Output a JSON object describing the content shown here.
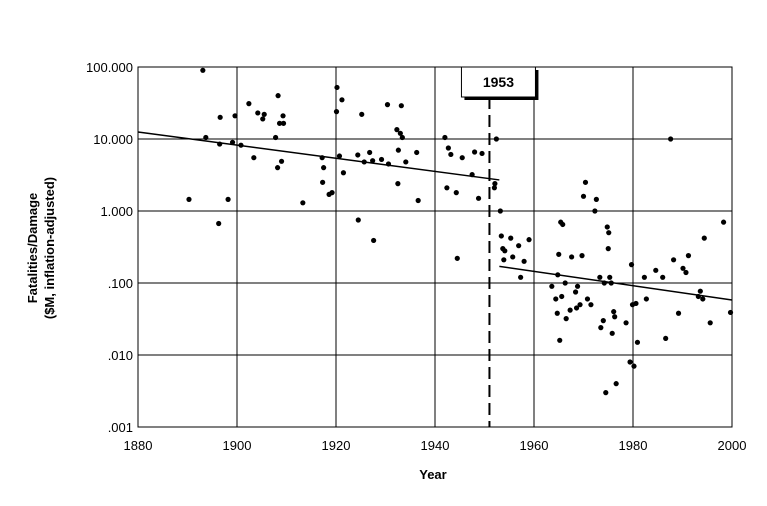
{
  "chart_data": {
    "type": "scatter",
    "title": "",
    "xlabel": "Year",
    "ylabel_lines": [
      "Fatalities/Damage",
      "($M, inflation-adjusted)"
    ],
    "xlim": [
      1880,
      2000
    ],
    "ylim": [
      0.001,
      100
    ],
    "yscale": "log",
    "x_ticks": [
      1880,
      1900,
      1920,
      1940,
      1960,
      1980,
      2000
    ],
    "x_tick_labels": [
      "1880",
      "1900",
      "1920",
      "1940",
      "1960",
      "1980",
      "2000"
    ],
    "y_ticks": [
      0.001,
      0.01,
      0.1,
      1,
      10,
      100
    ],
    "y_tick_labels": [
      ".001",
      ".010",
      ".100",
      "1.000",
      "10.000",
      "100.000"
    ],
    "grid": {
      "horizontal": true,
      "vertical": true
    },
    "legend": "none",
    "annotation": {
      "label": "1953",
      "x": 1951
    },
    "points": [
      [
        1890.3,
        1.45
      ],
      [
        1893.1,
        90
      ],
      [
        1893.7,
        10.5
      ],
      [
        1896.3,
        0.67
      ],
      [
        1896.5,
        8.5
      ],
      [
        1896.6,
        20
      ],
      [
        1898.2,
        1.45
      ],
      [
        1899.1,
        9
      ],
      [
        1899.6,
        21
      ],
      [
        1900.8,
        8.2
      ],
      [
        1902.4,
        31
      ],
      [
        1903.4,
        5.5
      ],
      [
        1904.2,
        23
      ],
      [
        1905.2,
        19
      ],
      [
        1905.5,
        22
      ],
      [
        1907.8,
        10.5
      ],
      [
        1908.2,
        4
      ],
      [
        1908.3,
        40
      ],
      [
        1908.6,
        16.5
      ],
      [
        1909,
        4.9
      ],
      [
        1909.3,
        21
      ],
      [
        1909.4,
        16.5
      ],
      [
        1913.3,
        1.3
      ],
      [
        1917.2,
        5.5
      ],
      [
        1917.3,
        2.5
      ],
      [
        1917.5,
        4
      ],
      [
        1918.6,
        1.7
      ],
      [
        1919.2,
        1.8
      ],
      [
        1920.1,
        24
      ],
      [
        1920.2,
        52
      ],
      [
        1920.7,
        5.8
      ],
      [
        1921.2,
        35
      ],
      [
        1921.5,
        3.4
      ],
      [
        1924.4,
        6
      ],
      [
        1924.5,
        0.75
      ],
      [
        1925.2,
        22
      ],
      [
        1925.7,
        4.8
      ],
      [
        1926.8,
        6.5
      ],
      [
        1927.6,
        0.39
      ],
      [
        1927.4,
        5
      ],
      [
        1929.2,
        5.2
      ],
      [
        1930.4,
        30
      ],
      [
        1930.6,
        4.5
      ],
      [
        1932.3,
        13.5
      ],
      [
        1932.5,
        2.4
      ],
      [
        1932.6,
        7
      ],
      [
        1933,
        12
      ],
      [
        1933.2,
        29
      ],
      [
        1933.4,
        10.5
      ],
      [
        1934.1,
        4.8
      ],
      [
        1936.3,
        6.5
      ],
      [
        1936.6,
        1.4
      ],
      [
        1942,
        10.5
      ],
      [
        1942.4,
        2.1
      ],
      [
        1942.7,
        7.5
      ],
      [
        1943.2,
        6.1
      ],
      [
        1944.3,
        1.8
      ],
      [
        1944.5,
        0.22
      ],
      [
        1945.5,
        5.5
      ],
      [
        1947.5,
        3.2
      ],
      [
        1948,
        6.6
      ],
      [
        1948.8,
        1.5
      ],
      [
        1949.5,
        6.3
      ],
      [
        1952,
        2.1
      ],
      [
        1952.1,
        2.4
      ],
      [
        1952.4,
        10
      ],
      [
        1953.2,
        1
      ],
      [
        1953.4,
        0.45
      ],
      [
        1953.7,
        0.3
      ],
      [
        1953.9,
        0.21
      ],
      [
        1954.1,
        0.28
      ],
      [
        1955.3,
        0.42
      ],
      [
        1955.7,
        0.23
      ],
      [
        1956.9,
        0.33
      ],
      [
        1957.3,
        0.12
      ],
      [
        1958,
        0.2
      ],
      [
        1959,
        0.4
      ],
      [
        1963.6,
        0.09
      ],
      [
        1964.4,
        0.06
      ],
      [
        1964.7,
        0.038
      ],
      [
        1964.8,
        0.13
      ],
      [
        1965,
        0.25
      ],
      [
        1965.2,
        0.016
      ],
      [
        1965.4,
        0.7
      ],
      [
        1965.6,
        0.065
      ],
      [
        1965.8,
        0.65
      ],
      [
        1966.3,
        0.1
      ],
      [
        1966.5,
        0.032
      ],
      [
        1967.3,
        0.042
      ],
      [
        1967.6,
        0.23
      ],
      [
        1968.4,
        0.075
      ],
      [
        1968.6,
        0.045
      ],
      [
        1968.8,
        0.09
      ],
      [
        1969.3,
        0.05
      ],
      [
        1969.7,
        0.24
      ],
      [
        1970,
        1.6
      ],
      [
        1970.4,
        2.5
      ],
      [
        1970.8,
        0.06
      ],
      [
        1971.5,
        0.05
      ],
      [
        1972.3,
        1
      ],
      [
        1972.6,
        1.45
      ],
      [
        1973.3,
        0.12
      ],
      [
        1973.5,
        0.024
      ],
      [
        1974,
        0.03
      ],
      [
        1974.2,
        0.1
      ],
      [
        1974.5,
        0.003
      ],
      [
        1974.8,
        0.6
      ],
      [
        1975.1,
        0.5
      ],
      [
        1975,
        0.3
      ],
      [
        1975.3,
        0.12
      ],
      [
        1975.6,
        0.1
      ],
      [
        1975.8,
        0.02
      ],
      [
        1976.1,
        0.04
      ],
      [
        1976.3,
        0.034
      ],
      [
        1976.6,
        0.004
      ],
      [
        1978.6,
        0.028
      ],
      [
        1979.4,
        0.008
      ],
      [
        1979.7,
        0.18
      ],
      [
        1979.9,
        0.05
      ],
      [
        1980.2,
        0.007
      ],
      [
        1980.6,
        0.052
      ],
      [
        1980.9,
        0.015
      ],
      [
        1982.3,
        0.12
      ],
      [
        1982.7,
        0.06
      ],
      [
        1984.6,
        0.15
      ],
      [
        1986,
        0.12
      ],
      [
        1986.6,
        0.017
      ],
      [
        1987.6,
        10
      ],
      [
        1988.2,
        0.21
      ],
      [
        1989.2,
        0.038
      ],
      [
        1990.1,
        0.16
      ],
      [
        1990.7,
        0.14
      ],
      [
        1991.2,
        0.24
      ],
      [
        1993.2,
        0.065
      ],
      [
        1993.6,
        0.077
      ],
      [
        1994.1,
        0.06
      ],
      [
        1994.4,
        0.42
      ],
      [
        1995.6,
        0.028
      ],
      [
        1998.3,
        0.7
      ],
      [
        1999.7,
        0.039
      ]
    ],
    "trendlines": [
      {
        "x": [
          1880,
          1953
        ],
        "y": [
          12.5,
          2.7
        ]
      },
      {
        "x": [
          1953,
          2000
        ],
        "y": [
          0.17,
          0.058
        ]
      }
    ]
  }
}
